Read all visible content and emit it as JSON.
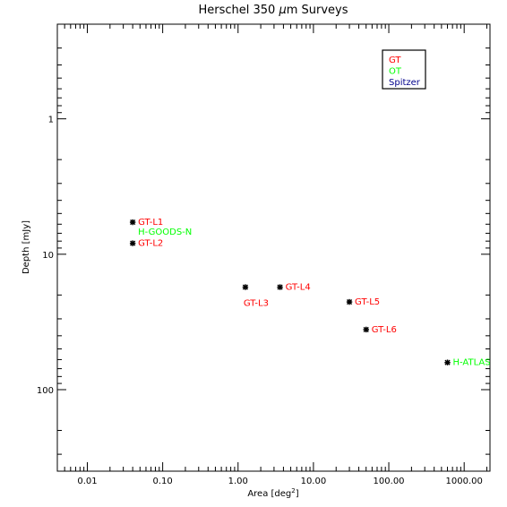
{
  "chart_data": {
    "type": "scatter",
    "title": "Herschel 350 μm Surveys",
    "title_parts": {
      "before": "Herschel 350 ",
      "mu": "μ",
      "after": "m Surveys"
    },
    "xlabel": "Area [deg²]",
    "xlabel_parts": {
      "main": "Area [deg",
      "sup": "2",
      "close": "]"
    },
    "ylabel": "Depth [mJy]",
    "x_scale": "log",
    "y_scale": "log",
    "y_inverted": true,
    "xlim": [
      0.004,
      2200
    ],
    "ylim": [
      0.2,
      400
    ],
    "x_ticks": [
      {
        "value": 0.01,
        "label": "0.01"
      },
      {
        "value": 0.1,
        "label": "0.10"
      },
      {
        "value": 1,
        "label": "1.00"
      },
      {
        "value": 10,
        "label": "10.00"
      },
      {
        "value": 100,
        "label": "100.00"
      },
      {
        "value": 1000,
        "label": "1000.00"
      }
    ],
    "y_ticks": [
      {
        "value": 1,
        "label": "1"
      },
      {
        "value": 10,
        "label": "10"
      },
      {
        "value": 100,
        "label": "100"
      }
    ],
    "grid": false,
    "legend": {
      "position": "top-right",
      "entries": [
        {
          "name": "GT",
          "color": "#ff0000"
        },
        {
          "name": "OT",
          "color": "#00ff00"
        },
        {
          "name": "Spitzer",
          "color": "#00008b"
        }
      ]
    },
    "points": [
      {
        "label": "GT-L1",
        "x": 0.04,
        "y": 5.8,
        "color": "#ff0000",
        "label_pos": "right"
      },
      {
        "label": "H-GOODS-N",
        "x": 0.04,
        "y": 5.8,
        "color": "#00ff00",
        "label_pos": "below-right"
      },
      {
        "label": "GT-L2",
        "x": 0.04,
        "y": 8.3,
        "color": "#ff0000",
        "label_pos": "right"
      },
      {
        "label": "GT-L3",
        "x": 1.25,
        "y": 17.5,
        "color": "#ff0000",
        "label_pos": "below"
      },
      {
        "label": "GT-L4",
        "x": 3.6,
        "y": 17.5,
        "color": "#ff0000",
        "label_pos": "right"
      },
      {
        "label": "GT-L5",
        "x": 30,
        "y": 22.5,
        "color": "#ff0000",
        "label_pos": "right"
      },
      {
        "label": "GT-L6",
        "x": 50,
        "y": 36,
        "color": "#ff0000",
        "label_pos": "right"
      },
      {
        "label": "H-ATLAS",
        "x": 600,
        "y": 63,
        "color": "#00ff00",
        "label_pos": "right"
      }
    ]
  }
}
